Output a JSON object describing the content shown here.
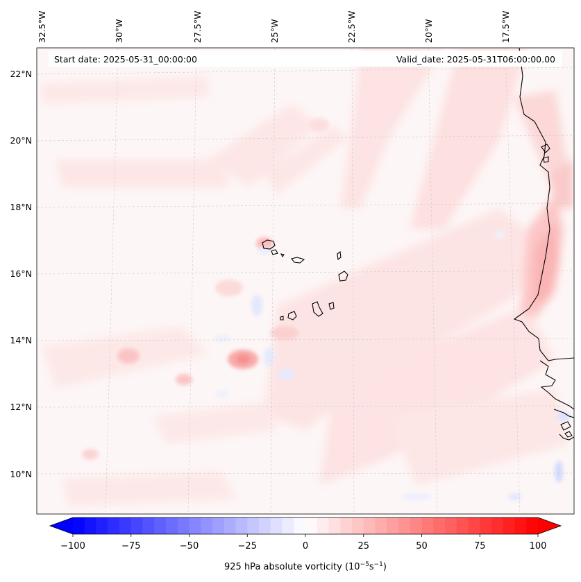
{
  "map": {
    "projection": "lambert-conformal",
    "field": "925 hPa absolute vorticity",
    "start_date_label": "Start date: 2025-05-31_00:00:00",
    "valid_date_label": "Valid_date: 2025-05-31T06:00:00.00",
    "lat_labels": [
      "22°N",
      "20°N",
      "18°N",
      "16°N",
      "14°N",
      "12°N",
      "10°N"
    ],
    "lon_labels": [
      "32.5°W",
      "30°W",
      "27.5°W",
      "25°W",
      "22.5°W",
      "20°W",
      "17.5°W"
    ],
    "gridlines": true,
    "coastline_color": "#000000",
    "regions_shown": [
      "Cape Verde Islands",
      "West African coast (Mauritania, Senegal, Gambia, Guinea-Bissau)"
    ]
  },
  "colorbar": {
    "ticks": [
      "−100",
      "−75",
      "−50",
      "−25",
      "0",
      "25",
      "50",
      "75",
      "100"
    ],
    "min": -100,
    "max": 100,
    "step": 5,
    "extend": "both",
    "label_main": "925 hPa absolute vorticity (10",
    "label_exp1": "−5",
    "label_mid": "s",
    "label_exp2": "−1",
    "label_end": ")",
    "colormap": "bwr",
    "color_min": "#0000ff",
    "color_zero": "#ffffff",
    "color_max": "#ff0000"
  }
}
